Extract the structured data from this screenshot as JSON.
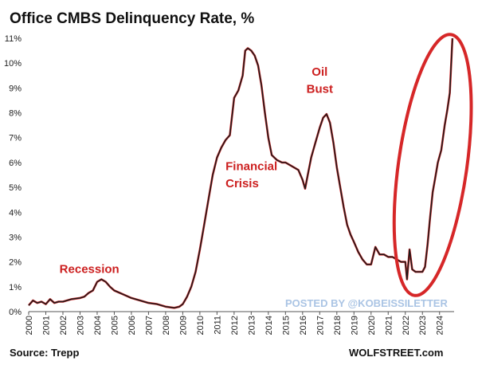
{
  "chart_data": {
    "type": "line",
    "title": "Office CMBS Delinquency Rate, %",
    "xlabel": "",
    "ylabel": "",
    "x_unit": "year",
    "xlim": [
      2000,
      2024.85
    ],
    "ylim": [
      0,
      11
    ],
    "y_ticks": [
      0,
      1,
      2,
      3,
      4,
      5,
      6,
      7,
      8,
      9,
      10,
      11
    ],
    "y_tick_labels": [
      "0%",
      "1%",
      "2%",
      "3%",
      "4%",
      "5%",
      "6%",
      "7%",
      "8%",
      "9%",
      "10%",
      "11%"
    ],
    "x_ticks": [
      2000,
      2001,
      2002,
      2003,
      2004,
      2005,
      2006,
      2007,
      2008,
      2009,
      2010,
      2011,
      2012,
      2013,
      2014,
      2015,
      2016,
      2017,
      2018,
      2019,
      2020,
      2021,
      2022,
      2023,
      2024
    ],
    "x_tick_labels": [
      "2000",
      "2001",
      "2002",
      "2003",
      "2004",
      "2005",
      "2006",
      "2007",
      "2008",
      "2009",
      "2010",
      "2011",
      "2012",
      "2013",
      "2014",
      "2015",
      "2016",
      "2017",
      "2018",
      "2019",
      "2020",
      "2021",
      "2022",
      "2023",
      "2024"
    ],
    "grid": false,
    "legend": "none",
    "line_color": "#1a1a1a",
    "highlight_color": "#d62728",
    "annotation_color": "#cc1f1f",
    "series": [
      {
        "x": [
          2000.0,
          2000.25,
          2000.5,
          2000.75,
          2001.0,
          2001.25,
          2001.5,
          2001.75,
          2002.0,
          2002.5,
          2003.0,
          2003.25,
          2003.5,
          2003.75,
          2004.0,
          2004.25,
          2004.5,
          2004.75,
          2005.0,
          2005.5,
          2006.0,
          2006.5,
          2007.0,
          2007.5,
          2008.0,
          2008.5,
          2008.8,
          2009.0,
          2009.25,
          2009.5,
          2009.75,
          2010.0,
          2010.25,
          2010.5,
          2010.75,
          2011.0,
          2011.25,
          2011.5,
          2011.75,
          2012.0,
          2012.25,
          2012.5,
          2012.65,
          2012.8,
          2013.0,
          2013.2,
          2013.4,
          2013.6,
          2013.8,
          2014.0,
          2014.2,
          2014.5,
          2014.8,
          2015.0,
          2015.25,
          2015.5,
          2015.75,
          2016.0,
          2016.15,
          2016.3,
          2016.5,
          2016.75,
          2017.0,
          2017.2,
          2017.4,
          2017.6,
          2017.8,
          2018.0,
          2018.2,
          2018.4,
          2018.6,
          2018.8,
          2019.0,
          2019.25,
          2019.5,
          2019.75,
          2020.0,
          2020.25,
          2020.5,
          2020.75,
          2021.0,
          2021.25,
          2021.5,
          2021.75,
          2022.0,
          2022.1,
          2022.25,
          2022.4,
          2022.6,
          2022.8,
          2023.0,
          2023.15,
          2023.3,
          2023.45,
          2023.6,
          2023.75,
          2023.9,
          2024.1,
          2024.3,
          2024.45,
          2024.6,
          2024.75
        ],
        "values": [
          0.25,
          0.45,
          0.35,
          0.4,
          0.3,
          0.5,
          0.35,
          0.4,
          0.4,
          0.5,
          0.55,
          0.6,
          0.75,
          0.85,
          1.2,
          1.3,
          1.2,
          1.0,
          0.85,
          0.7,
          0.55,
          0.45,
          0.35,
          0.3,
          0.2,
          0.15,
          0.2,
          0.3,
          0.6,
          1.0,
          1.6,
          2.5,
          3.5,
          4.5,
          5.5,
          6.2,
          6.6,
          6.9,
          7.1,
          8.6,
          8.9,
          9.5,
          10.5,
          10.6,
          10.5,
          10.3,
          9.9,
          9.1,
          8.0,
          7.0,
          6.3,
          6.1,
          6.0,
          6.0,
          5.9,
          5.8,
          5.7,
          5.3,
          4.95,
          5.5,
          6.2,
          6.8,
          7.4,
          7.8,
          7.95,
          7.6,
          6.8,
          5.8,
          5.0,
          4.2,
          3.5,
          3.1,
          2.8,
          2.4,
          2.1,
          1.9,
          1.9,
          2.6,
          2.3,
          2.3,
          2.2,
          2.2,
          2.1,
          2.0,
          2.0,
          1.3,
          2.5,
          1.7,
          1.6,
          1.6,
          1.6,
          1.8,
          2.7,
          3.8,
          4.8,
          5.4,
          6.0,
          6.5,
          7.5,
          8.1,
          8.8,
          11.0
        ]
      }
    ],
    "annotations": [
      {
        "text": "Recession",
        "x": 2001.8,
        "y": 1.55
      },
      {
        "text": "Financial",
        "x": 2011.5,
        "y": 5.7
      },
      {
        "text": "Crisis",
        "x": 2011.5,
        "y": 5.0
      },
      {
        "text": "Oil",
        "x": 2017.0,
        "y": 9.5
      },
      {
        "text": "Bust",
        "x": 2017.0,
        "y": 8.8
      }
    ],
    "ellipse": {
      "center_x": 2023.6,
      "center_y": 5.9,
      "half_width_years": 2.0,
      "half_height": 5.3
    },
    "watermark": "POSTED BY @KOBEISSILETTER",
    "source": "Source: Trepp",
    "credit": "WOLFSTREET.com"
  }
}
